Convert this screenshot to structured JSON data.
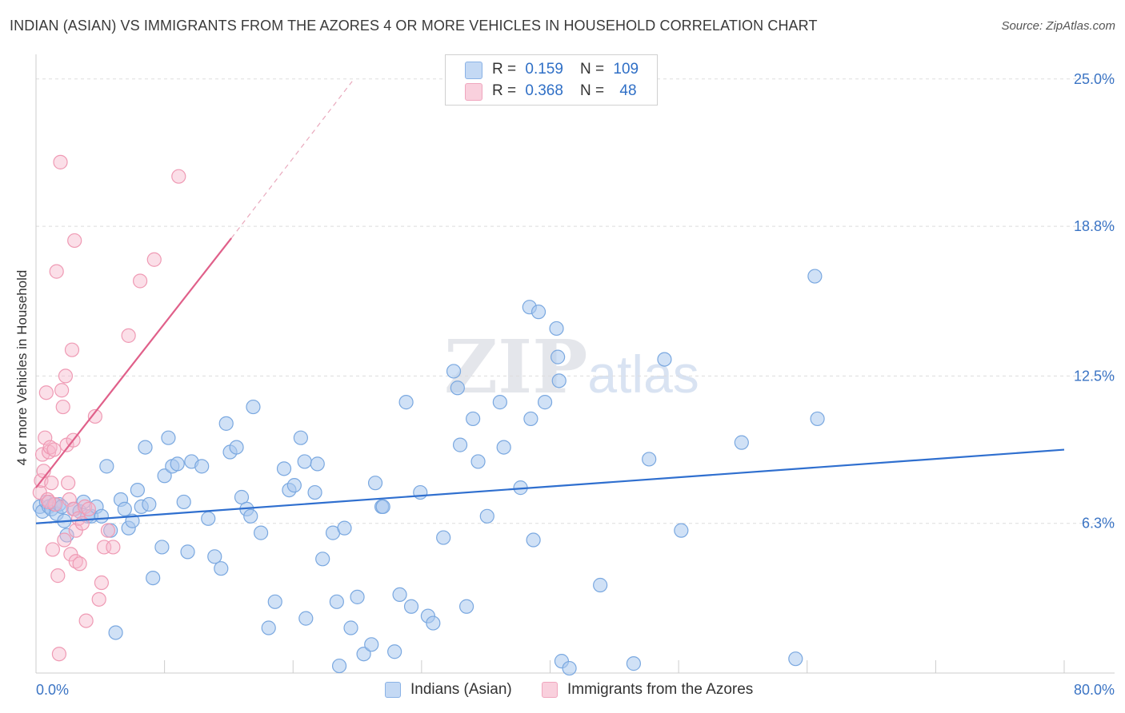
{
  "header": {
    "title": "INDIAN (ASIAN) VS IMMIGRANTS FROM THE AZORES 4 OR MORE VEHICLES IN HOUSEHOLD CORRELATION CHART",
    "source": "Source: ZipAtlas.com"
  },
  "watermark": {
    "zip": "ZIP",
    "atlas": "atlas"
  },
  "legend": {
    "rows": [
      {
        "r_label": "R =",
        "r_value": "0.159",
        "n_label": "N =",
        "n_value": "109",
        "color": "#a9c8ef"
      },
      {
        "r_label": "R =",
        "r_value": "0.368",
        "n_label": "N =",
        "n_value": "48",
        "color": "#f6b9cb"
      }
    ]
  },
  "bottom_legend": {
    "series1": "Indians (Asian)",
    "series2": "Immigrants from the Azores"
  },
  "chart_data": {
    "type": "scatter",
    "title": "INDIAN (ASIAN) VS IMMIGRANTS FROM THE AZORES 4 OR MORE VEHICLES IN HOUSEHOLD CORRELATION CHART",
    "xlabel": "",
    "ylabel": "4 or more Vehicles in Household",
    "xlim": [
      0,
      80
    ],
    "ylim": [
      0,
      25.7
    ],
    "x_tick_labels": [
      "0.0%",
      "80.0%"
    ],
    "y_ticks": [
      6.3,
      12.5,
      18.8,
      25.0
    ],
    "y_tick_labels": [
      "6.3%",
      "12.5%",
      "18.8%",
      "25.0%"
    ],
    "colors": {
      "series1_fill": "#a9c8ef",
      "series1_stroke": "#7aa8e0",
      "series1_line": "#2f6fcf",
      "series2_fill": "#f6b9cb",
      "series2_stroke": "#ef9ab4",
      "series2_line": "#e0608a",
      "tick_text": "#3b74c4",
      "grid": "#dddddd"
    },
    "series": [
      {
        "name": "Indians (Asian)",
        "R": 0.159,
        "N": 109,
        "trend": {
          "x1": 0,
          "y1": 6.3,
          "x2": 80,
          "y2": 9.4
        },
        "points": [
          [
            0.3,
            7.0
          ],
          [
            0.5,
            6.8
          ],
          [
            0.8,
            7.2
          ],
          [
            1.0,
            7.0
          ],
          [
            1.2,
            6.9
          ],
          [
            1.4,
            7.1
          ],
          [
            1.6,
            6.7
          ],
          [
            1.8,
            7.1
          ],
          [
            2.0,
            7.0
          ],
          [
            2.2,
            6.4
          ],
          [
            2.4,
            5.8
          ],
          [
            3.0,
            6.9
          ],
          [
            3.4,
            6.8
          ],
          [
            3.7,
            7.2
          ],
          [
            4.0,
            6.6
          ],
          [
            4.3,
            6.6
          ],
          [
            4.7,
            7.0
          ],
          [
            5.1,
            6.6
          ],
          [
            5.5,
            8.7
          ],
          [
            5.8,
            6.0
          ],
          [
            6.2,
            1.7
          ],
          [
            6.6,
            7.3
          ],
          [
            6.9,
            6.9
          ],
          [
            7.2,
            6.1
          ],
          [
            7.5,
            6.4
          ],
          [
            7.9,
            7.7
          ],
          [
            8.2,
            7.0
          ],
          [
            8.5,
            9.5
          ],
          [
            8.8,
            7.1
          ],
          [
            9.1,
            4.0
          ],
          [
            9.8,
            5.3
          ],
          [
            10.0,
            8.3
          ],
          [
            10.3,
            9.9
          ],
          [
            10.6,
            8.7
          ],
          [
            11.0,
            8.8
          ],
          [
            11.5,
            7.2
          ],
          [
            11.8,
            5.1
          ],
          [
            12.1,
            8.9
          ],
          [
            12.9,
            8.7
          ],
          [
            13.4,
            6.5
          ],
          [
            13.9,
            4.9
          ],
          [
            14.4,
            4.4
          ],
          [
            14.8,
            10.5
          ],
          [
            15.1,
            9.3
          ],
          [
            15.6,
            9.5
          ],
          [
            16.0,
            7.4
          ],
          [
            16.4,
            6.9
          ],
          [
            16.7,
            6.6
          ],
          [
            16.9,
            11.2
          ],
          [
            17.5,
            5.9
          ],
          [
            18.1,
            1.9
          ],
          [
            18.6,
            3.0
          ],
          [
            19.3,
            8.6
          ],
          [
            19.7,
            7.7
          ],
          [
            20.1,
            7.9
          ],
          [
            20.6,
            9.9
          ],
          [
            20.9,
            8.9
          ],
          [
            21.0,
            2.3
          ],
          [
            21.7,
            7.6
          ],
          [
            21.9,
            8.8
          ],
          [
            22.3,
            4.8
          ],
          [
            23.1,
            5.9
          ],
          [
            23.4,
            3.0
          ],
          [
            23.6,
            0.3
          ],
          [
            24.0,
            6.1
          ],
          [
            24.5,
            1.9
          ],
          [
            25.0,
            3.2
          ],
          [
            25.5,
            0.8
          ],
          [
            26.1,
            1.2
          ],
          [
            26.4,
            8.0
          ],
          [
            26.9,
            7.0
          ],
          [
            27.0,
            7.0
          ],
          [
            27.9,
            0.9
          ],
          [
            28.3,
            3.3
          ],
          [
            28.8,
            11.4
          ],
          [
            29.2,
            2.8
          ],
          [
            29.9,
            7.6
          ],
          [
            30.5,
            2.4
          ],
          [
            30.9,
            2.1
          ],
          [
            31.7,
            5.7
          ],
          [
            32.5,
            12.7
          ],
          [
            32.8,
            12.0
          ],
          [
            33.0,
            9.6
          ],
          [
            33.5,
            2.8
          ],
          [
            34.0,
            10.7
          ],
          [
            34.4,
            8.9
          ],
          [
            35.1,
            6.6
          ],
          [
            36.1,
            11.4
          ],
          [
            36.4,
            9.5
          ],
          [
            37.7,
            7.8
          ],
          [
            38.4,
            15.4
          ],
          [
            38.5,
            10.7
          ],
          [
            38.7,
            5.6
          ],
          [
            39.1,
            15.2
          ],
          [
            39.6,
            11.4
          ],
          [
            40.7,
            12.3
          ],
          [
            40.6,
            13.3
          ],
          [
            40.5,
            14.5
          ],
          [
            40.9,
            0.5
          ],
          [
            43.9,
            3.7
          ],
          [
            46.5,
            0.4
          ],
          [
            47.7,
            9.0
          ],
          [
            48.9,
            13.2
          ],
          [
            50.2,
            6.0
          ],
          [
            54.9,
            9.7
          ],
          [
            59.1,
            0.6
          ],
          [
            60.6,
            16.7
          ],
          [
            60.8,
            10.7
          ],
          [
            41.5,
            0.2
          ]
        ]
      },
      {
        "name": "Immigrants from the Azores",
        "R": 0.368,
        "N": 48,
        "trend": {
          "x1": 0,
          "y1": 7.8,
          "x2": 15.2,
          "y2": 18.3
        },
        "trend_dashed_to": {
          "x": 24.6,
          "y": 24.9
        },
        "points": [
          [
            0.3,
            7.6
          ],
          [
            0.4,
            8.1
          ],
          [
            0.5,
            9.2
          ],
          [
            0.6,
            8.5
          ],
          [
            0.7,
            9.9
          ],
          [
            0.8,
            11.8
          ],
          [
            0.9,
            7.3
          ],
          [
            1.0,
            9.3
          ],
          [
            1.1,
            9.5
          ],
          [
            1.2,
            8.0
          ],
          [
            1.3,
            5.2
          ],
          [
            1.4,
            9.4
          ],
          [
            1.5,
            7.1
          ],
          [
            1.6,
            16.9
          ],
          [
            1.7,
            4.1
          ],
          [
            1.8,
            0.8
          ],
          [
            1.9,
            21.5
          ],
          [
            2.0,
            11.9
          ],
          [
            2.1,
            11.2
          ],
          [
            2.2,
            5.6
          ],
          [
            2.3,
            12.5
          ],
          [
            2.4,
            9.6
          ],
          [
            2.5,
            8.0
          ],
          [
            2.6,
            7.3
          ],
          [
            2.7,
            5.0
          ],
          [
            2.8,
            13.6
          ],
          [
            2.9,
            9.8
          ],
          [
            2.9,
            6.9
          ],
          [
            3.0,
            18.2
          ],
          [
            3.1,
            4.7
          ],
          [
            3.1,
            6.0
          ],
          [
            3.3,
            6.5
          ],
          [
            3.4,
            4.6
          ],
          [
            3.6,
            6.3
          ],
          [
            3.8,
            7.0
          ],
          [
            3.9,
            2.2
          ],
          [
            4.1,
            6.9
          ],
          [
            4.6,
            10.8
          ],
          [
            4.9,
            3.1
          ],
          [
            5.1,
            3.8
          ],
          [
            5.3,
            5.3
          ],
          [
            5.6,
            6.0
          ],
          [
            6.0,
            5.3
          ],
          [
            7.2,
            14.2
          ],
          [
            8.1,
            16.5
          ],
          [
            9.2,
            17.4
          ],
          [
            11.1,
            20.9
          ],
          [
            1.0,
            7.2
          ]
        ]
      }
    ]
  }
}
